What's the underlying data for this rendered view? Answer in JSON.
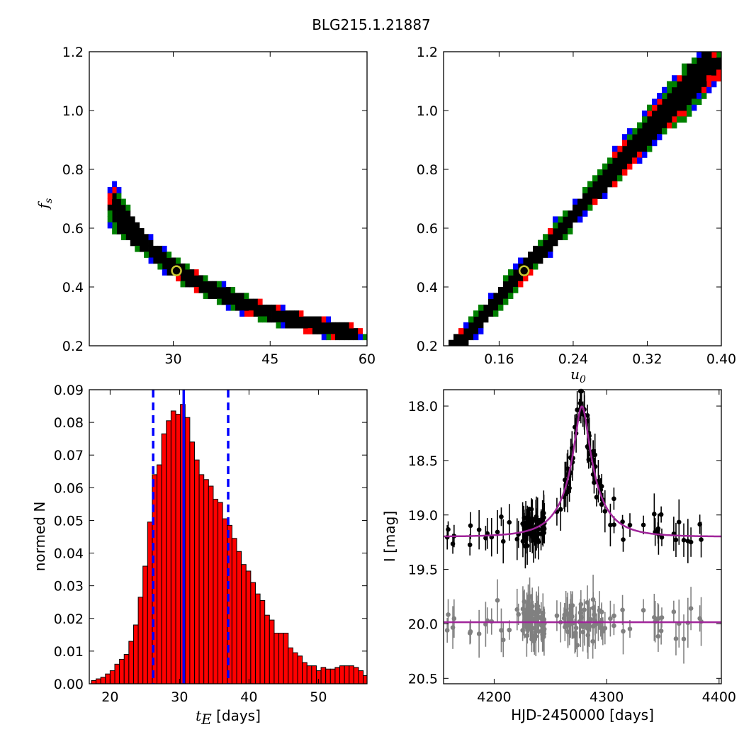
{
  "figure": {
    "title": "BLG215.1.21887"
  },
  "chart_data": [
    {
      "type": "heatmap",
      "panel": "fs-vs-tE",
      "xlim": [
        17,
        60
      ],
      "ylim": [
        0.2,
        1.2
      ],
      "xticks": [
        "30",
        "45",
        "60"
      ],
      "yticks": [
        "0.2",
        "0.4",
        "0.6",
        "0.8",
        "1.0",
        "1.2"
      ],
      "xlabel": "",
      "ylabel_main": "f",
      "ylabel_sub": "s",
      "colors": {
        "outer": "#0000ff",
        "mid": "#008000",
        "inner": "#ff0000",
        "core": "#000000",
        "marker": "#c8c832"
      },
      "best_fit": {
        "x": 30.5,
        "y": 0.455
      },
      "distribution": "curve fs = 14.0 / tE, points from tE 20.5 to 57.5"
    },
    {
      "type": "heatmap",
      "panel": "fs-vs-u0",
      "xlim": [
        0.1,
        0.4
      ],
      "ylim": [
        0.2,
        1.2
      ],
      "xticks": [
        "0.16",
        "0.24",
        "0.32",
        "0.40"
      ],
      "yticks": [
        "0.2",
        "0.4",
        "0.6",
        "0.8",
        "1.0",
        "1.2"
      ],
      "xlabel_main": "u",
      "xlabel_sub": "0",
      "colors": {
        "outer": "#0000ff",
        "mid": "#008000",
        "inner": "#ff0000",
        "core": "#000000",
        "marker": "#c8c832"
      },
      "best_fit": {
        "x": 0.187,
        "y": 0.455
      },
      "distribution": "line fs = 0.455 + 3.47 * (u0 - 0.187), u0 from 0.105 to 0.395"
    },
    {
      "type": "bar",
      "panel": "tE-histogram",
      "xlim": [
        17,
        57
      ],
      "ylim": [
        0,
        0.09
      ],
      "xticks": [
        "20",
        "30",
        "40",
        "50"
      ],
      "yticks": [
        "0.00",
        "0.01",
        "0.02",
        "0.03",
        "0.04",
        "0.05",
        "0.06",
        "0.07",
        "0.08",
        "0.09"
      ],
      "xlabel_main": "t",
      "xlabel_sub": "E",
      "xlabel_rest": " [days]",
      "ylabel": "normed N",
      "bin_start": 17.3,
      "bin_width": 0.675,
      "values": [
        0.001,
        0.0015,
        0.002,
        0.003,
        0.004,
        0.006,
        0.0075,
        0.009,
        0.013,
        0.018,
        0.0265,
        0.036,
        0.0495,
        0.064,
        0.067,
        0.0765,
        0.0805,
        0.0835,
        0.0825,
        0.0855,
        0.0815,
        0.074,
        0.0685,
        0.064,
        0.0625,
        0.0605,
        0.0565,
        0.0555,
        0.0505,
        0.0485,
        0.0445,
        0.0405,
        0.0365,
        0.0345,
        0.031,
        0.0275,
        0.0255,
        0.021,
        0.0195,
        0.0155,
        0.0155,
        0.0155,
        0.011,
        0.0095,
        0.0085,
        0.0065,
        0.0055,
        0.0055,
        0.004,
        0.005,
        0.0045,
        0.0045,
        0.005,
        0.0055,
        0.0055,
        0.0055,
        0.005,
        0.004,
        0.0025,
        0.0015,
        0.001,
        0.0005
      ],
      "bar_color": "#ff0000",
      "median": 30.6,
      "lower": 26.2,
      "upper": 37.0,
      "line_color": "#0000ff"
    },
    {
      "type": "scatter",
      "panel": "light-curve",
      "xlim": [
        4155,
        4402
      ],
      "ylim": [
        20.55,
        17.85
      ],
      "xticks": [
        "4200",
        "4300",
        "4400"
      ],
      "yticks": [
        "18.0",
        "18.5",
        "19.0",
        "19.5",
        "20.0",
        "20.5"
      ],
      "xlabel": "HJD-2450000 [days]",
      "ylabel": "I [mag]",
      "model": {
        "t0": 4278,
        "tE": 30.6,
        "u0": 0.187,
        "baseline": 19.2,
        "fs": 0.455
      },
      "series": [
        {
          "color": "#000000"
        },
        {
          "color": "#808080"
        },
        {
          "color": "#a0249a"
        }
      ]
    }
  ]
}
